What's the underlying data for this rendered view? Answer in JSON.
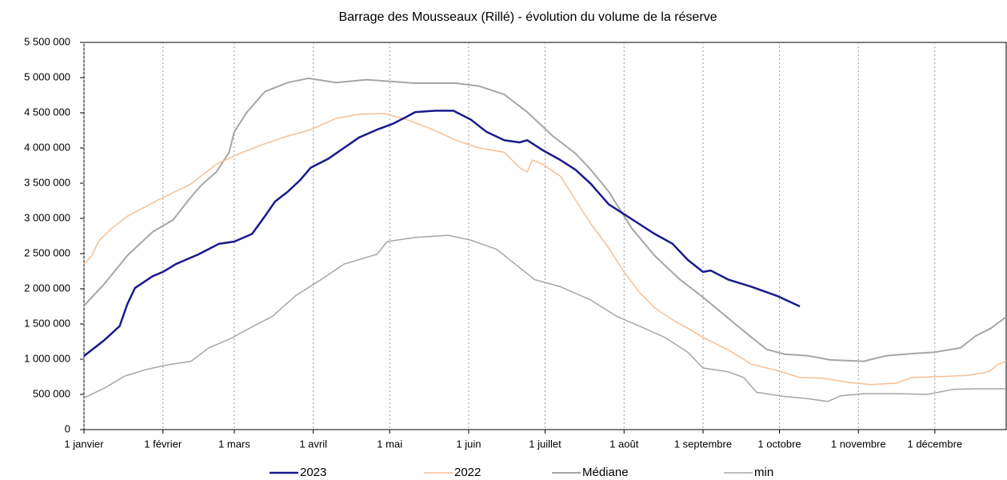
{
  "chart_data": {
    "type": "line",
    "title": "Barrage des Mousseaux (Rillé) - évolution du volume de la réserve",
    "xlim": [
      1,
      363
    ],
    "ylim": [
      0,
      5500000
    ],
    "xticks": [
      {
        "value": 1,
        "label": "1 janvier"
      },
      {
        "value": 32,
        "label": "1 février"
      },
      {
        "value": 60,
        "label": "1 mars"
      },
      {
        "value": 91,
        "label": "1 avril"
      },
      {
        "value": 121,
        "label": "1 mai"
      },
      {
        "value": 152,
        "label": "1 juin"
      },
      {
        "value": 182,
        "label": "1 juillet"
      },
      {
        "value": 213,
        "label": "1 août"
      },
      {
        "value": 244,
        "label": "1 septembre"
      },
      {
        "value": 274,
        "label": "1 octobre"
      },
      {
        "value": 305,
        "label": "1 novembre"
      },
      {
        "value": 335,
        "label": "1 décembre"
      }
    ],
    "yticks": [
      {
        "value": 0,
        "label": "0"
      },
      {
        "value": 500000,
        "label": "500 000"
      },
      {
        "value": 1000000,
        "label": "1 000 000"
      },
      {
        "value": 1500000,
        "label": "1 500 000"
      },
      {
        "value": 2000000,
        "label": "2 000 000"
      },
      {
        "value": 2500000,
        "label": "2 500 000"
      },
      {
        "value": 3000000,
        "label": "3 000 000"
      },
      {
        "value": 3500000,
        "label": "3 500 000"
      },
      {
        "value": 4000000,
        "label": "4 000 000"
      },
      {
        "value": 4500000,
        "label": "4 500 000"
      },
      {
        "value": 5000000,
        "label": "5 000 000"
      },
      {
        "value": 5500000,
        "label": "5 500 000"
      }
    ],
    "grid": "x",
    "legend": "bottom",
    "series": [
      {
        "name": "2023",
        "color": "#1a1a8c",
        "width": 2.5,
        "x": [
          1,
          9,
          15,
          18,
          21,
          28,
          32,
          37,
          46,
          54,
          60,
          67,
          72,
          76,
          81,
          86,
          90,
          97,
          103,
          109,
          116,
          122,
          128,
          131,
          139,
          146,
          153,
          159,
          166,
          172,
          175,
          181,
          188,
          194,
          200,
          207,
          213,
          219,
          225,
          232,
          238,
          244,
          247,
          254,
          263,
          273,
          282
        ],
        "values": [
          1045000,
          1270000,
          1470000,
          1780000,
          2010000,
          2180000,
          2240000,
          2350000,
          2490000,
          2640000,
          2670000,
          2780000,
          3030000,
          3240000,
          3380000,
          3550000,
          3720000,
          3850000,
          4000000,
          4150000,
          4260000,
          4340000,
          4450000,
          4510000,
          4530000,
          4530000,
          4400000,
          4230000,
          4110000,
          4080000,
          4110000,
          3970000,
          3830000,
          3690000,
          3490000,
          3200000,
          3060000,
          2920000,
          2780000,
          2640000,
          2410000,
          2240000,
          2260000,
          2130000,
          2030000,
          1900000,
          1750000
        ]
      },
      {
        "name": "2022",
        "color": "#f7bf94",
        "width": 1.5,
        "x": [
          1,
          4,
          7,
          12,
          18,
          31,
          43,
          53,
          62,
          72,
          81,
          90,
          100,
          109,
          119,
          128,
          138,
          147,
          156,
          166,
          172,
          175,
          177,
          181,
          188,
          194,
          200,
          207,
          213,
          219,
          225,
          232,
          238,
          244,
          254,
          263,
          273,
          282,
          291,
          301,
          310,
          320,
          326,
          335,
          348,
          356,
          360,
          363
        ],
        "values": [
          2350000,
          2470000,
          2690000,
          2860000,
          3030000,
          3280000,
          3490000,
          3770000,
          3920000,
          4060000,
          4170000,
          4260000,
          4420000,
          4480000,
          4490000,
          4400000,
          4260000,
          4110000,
          4000000,
          3940000,
          3720000,
          3660000,
          3830000,
          3770000,
          3600000,
          3260000,
          2920000,
          2580000,
          2240000,
          1950000,
          1730000,
          1560000,
          1440000,
          1310000,
          1130000,
          930000,
          840000,
          740000,
          730000,
          670000,
          640000,
          660000,
          740000,
          750000,
          770000,
          820000,
          930000,
          970000
        ]
      },
      {
        "name": "Médiane",
        "color": "#a6a6a6",
        "width": 2,
        "x": [
          1,
          9,
          18,
          28,
          36,
          42,
          47,
          53,
          58,
          60,
          65,
          72,
          81,
          89,
          100,
          112,
          131,
          147,
          156,
          166,
          175,
          185,
          194,
          200,
          207,
          216,
          225,
          235,
          244,
          254,
          263,
          269,
          276,
          285,
          294,
          307,
          316,
          326,
          335,
          345,
          351,
          357,
          363
        ],
        "values": [
          1760000,
          2070000,
          2470000,
          2810000,
          2980000,
          3260000,
          3470000,
          3660000,
          3940000,
          4230000,
          4510000,
          4800000,
          4930000,
          4990000,
          4930000,
          4970000,
          4920000,
          4920000,
          4880000,
          4760000,
          4510000,
          4170000,
          3920000,
          3690000,
          3380000,
          2860000,
          2470000,
          2130000,
          1880000,
          1580000,
          1310000,
          1140000,
          1070000,
          1050000,
          990000,
          970000,
          1050000,
          1080000,
          1100000,
          1160000,
          1330000,
          1440000,
          1600000
        ]
      },
      {
        "name": "min",
        "color": "#a6a6a6",
        "width": 1.5,
        "x": [
          1,
          9,
          17,
          25,
          34,
          43,
          50,
          59,
          65,
          75,
          84,
          94,
          103,
          116,
          120,
          131,
          144,
          153,
          163,
          172,
          178,
          188,
          200,
          210,
          219,
          229,
          238,
          244,
          254,
          260,
          265,
          276,
          285,
          293,
          298,
          307,
          320,
          332,
          342,
          351,
          363
        ],
        "values": [
          450000,
          590000,
          760000,
          850000,
          920000,
          970000,
          1160000,
          1300000,
          1420000,
          1610000,
          1900000,
          2130000,
          2350000,
          2490000,
          2670000,
          2730000,
          2760000,
          2690000,
          2560000,
          2300000,
          2130000,
          2030000,
          1840000,
          1610000,
          1470000,
          1310000,
          1100000,
          875000,
          820000,
          740000,
          530000,
          470000,
          440000,
          400000,
          480000,
          510000,
          510000,
          500000,
          570000,
          580000,
          580000
        ]
      }
    ]
  }
}
